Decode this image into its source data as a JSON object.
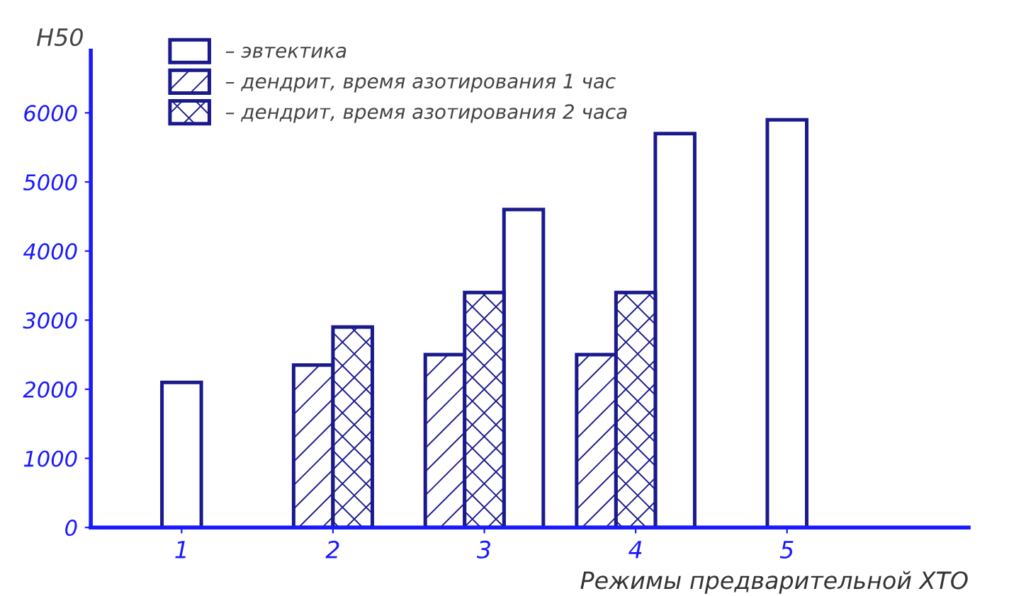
{
  "chart_data": {
    "type": "bar",
    "ylabel": "H50",
    "xlabel": "Режимы предварительной ХТО",
    "categories": [
      "1",
      "2",
      "3",
      "4",
      "5"
    ],
    "series": [
      {
        "name": "– эвтектика",
        "color": "#1a1a8c",
        "values": [
          2100,
          null,
          4600,
          5700,
          5900
        ]
      },
      {
        "name": "– дендрит, время азотирования 1 час",
        "color": "#1a1a8c",
        "values": [
          null,
          2350,
          2500,
          2500,
          null
        ]
      },
      {
        "name": "– дендрит, время азотирования 2 часа",
        "color": "#1a1a8c",
        "values": [
          null,
          2900,
          3400,
          3400,
          null
        ]
      }
    ],
    "ylim": [
      0,
      6900
    ],
    "yticks": [
      0,
      1000,
      2000,
      3000,
      4000,
      5000,
      6000
    ],
    "grid": false,
    "legend": "top left"
  }
}
